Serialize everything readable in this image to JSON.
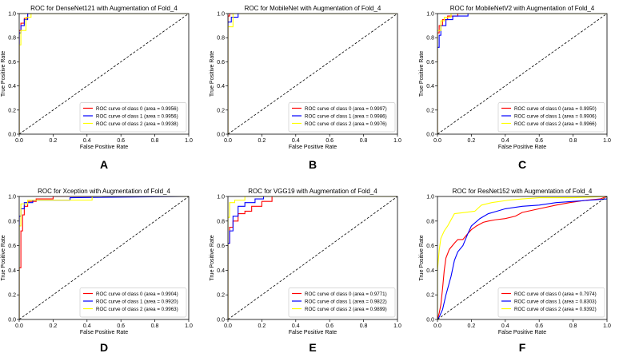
{
  "chart_data": [
    {
      "type": "line",
      "panel_label": "A",
      "title": "ROC for DenseNet121 with Augmentation of Fold_4",
      "xlabel": "False Positive Rate",
      "ylabel": "True Positive Rate",
      "xlim": [
        0,
        1
      ],
      "ylim": [
        0,
        1
      ],
      "ticks": [
        "0.0",
        "0.2",
        "0.4",
        "0.6",
        "0.8",
        "1.0"
      ],
      "legend_position": "bottom-right",
      "series": [
        {
          "name": "ROC curve of class 0 (area = 0.9956)",
          "color": "#ff0000",
          "x": [
            0,
            0,
            0.01,
            0.01,
            0.03,
            0.03,
            0.05,
            0.05,
            1
          ],
          "y": [
            0,
            0.86,
            0.86,
            0.92,
            0.92,
            0.96,
            0.96,
            1,
            1
          ]
        },
        {
          "name": "ROC curve of class 1 (area = 0.9956)",
          "color": "#0000ff",
          "x": [
            0,
            0,
            0.01,
            0.01,
            0.03,
            0.03,
            0.05,
            0.05,
            1
          ],
          "y": [
            0,
            0.84,
            0.84,
            0.9,
            0.9,
            0.95,
            0.95,
            1,
            1
          ]
        },
        {
          "name": "ROC curve of class 2 (area = 0.9938)",
          "color": "#ffff00",
          "x": [
            0,
            0,
            0.01,
            0.01,
            0.04,
            0.04,
            0.07,
            0.07,
            1
          ],
          "y": [
            0,
            0.74,
            0.74,
            0.86,
            0.86,
            0.97,
            0.97,
            1,
            1
          ]
        },
        {
          "name": "",
          "color": "#000000",
          "dashed": true,
          "x": [
            0,
            1
          ],
          "y": [
            0,
            1
          ]
        }
      ]
    },
    {
      "type": "line",
      "panel_label": "B",
      "title": "ROC for MobileNet with Augmentation of Fold_4",
      "xlabel": "False Positive Rate",
      "ylabel": "True Positive Rate",
      "xlim": [
        0,
        1
      ],
      "ylim": [
        0,
        1
      ],
      "ticks": [
        "0.0",
        "0.2",
        "0.4",
        "0.6",
        "0.8",
        "1.0"
      ],
      "legend_position": "bottom-right",
      "series": [
        {
          "name": "ROC curve of class 0 (area = 0.9997)",
          "color": "#ff0000",
          "x": [
            0,
            0,
            0.01,
            0.01,
            1
          ],
          "y": [
            0,
            0.98,
            0.98,
            1,
            1
          ]
        },
        {
          "name": "ROC curve of class 1 (area = 0.9986)",
          "color": "#0000ff",
          "x": [
            0,
            0,
            0.02,
            0.02,
            0.06,
            0.06,
            1
          ],
          "y": [
            0,
            0.93,
            0.93,
            0.97,
            0.97,
            1,
            1
          ]
        },
        {
          "name": "ROC curve of class 2 (area = 0.9976)",
          "color": "#ffff00",
          "x": [
            0,
            0,
            0.03,
            0.03,
            1
          ],
          "y": [
            0,
            0.89,
            0.89,
            1,
            1
          ]
        },
        {
          "name": "",
          "color": "#000000",
          "dashed": true,
          "x": [
            0,
            1
          ],
          "y": [
            0,
            1
          ]
        }
      ]
    },
    {
      "type": "line",
      "panel_label": "C",
      "title": "ROC for MobileNetV2 with Augmentation of Fold_4",
      "xlabel": "False Positive Rate",
      "ylabel": "True Positive Rate",
      "xlim": [
        0,
        1
      ],
      "ylim": [
        0,
        1
      ],
      "ticks": [
        "0.0",
        "0.2",
        "0.4",
        "0.6",
        "0.8",
        "1.0"
      ],
      "legend_position": "bottom-right",
      "series": [
        {
          "name": "ROC curve of class 0 (area = 0.9950)",
          "color": "#ff0000",
          "x": [
            0,
            0,
            0.01,
            0.01,
            0.03,
            0.03,
            0.06,
            0.06,
            0.12,
            0.12,
            1
          ],
          "y": [
            0,
            0.84,
            0.84,
            0.9,
            0.9,
            0.95,
            0.95,
            0.98,
            0.98,
            1,
            1
          ]
        },
        {
          "name": "ROC curve of class 1 (area = 0.9906)",
          "color": "#0000ff",
          "x": [
            0,
            0,
            0.01,
            0.01,
            0.02,
            0.02,
            0.05,
            0.05,
            0.09,
            0.09,
            0.18,
            0.18,
            1
          ],
          "y": [
            0,
            0.72,
            0.72,
            0.82,
            0.82,
            0.9,
            0.9,
            0.95,
            0.95,
            0.98,
            0.98,
            1,
            1
          ]
        },
        {
          "name": "ROC curve of class 2 (area = 0.9966)",
          "color": "#ffff00",
          "x": [
            0,
            0,
            0.02,
            0.02,
            0.04,
            0.04,
            0.08,
            0.08,
            1
          ],
          "y": [
            0,
            0.86,
            0.86,
            0.94,
            0.94,
            0.97,
            0.97,
            1,
            1
          ]
        },
        {
          "name": "",
          "color": "#000000",
          "dashed": true,
          "x": [
            0,
            1
          ],
          "y": [
            0,
            1
          ]
        }
      ]
    },
    {
      "type": "line",
      "panel_label": "D",
      "title": "ROC for Xception with Augmentation of Fold_4",
      "xlabel": "False Positive Rate",
      "ylabel": "True Positive Rate",
      "xlim": [
        0,
        1
      ],
      "ylim": [
        0,
        1
      ],
      "ticks": [
        "0.0",
        "0.2",
        "0.4",
        "0.6",
        "0.8",
        "1.0"
      ],
      "legend_position": "bottom-right",
      "series": [
        {
          "name": "ROC curve of class 0 (area = 0.9904)",
          "color": "#ff0000",
          "x": [
            0,
            0,
            0.01,
            0.01,
            0.02,
            0.02,
            0.03,
            0.03,
            0.05,
            0.05,
            0.1,
            0.1,
            0.2,
            0.2,
            1
          ],
          "y": [
            0,
            0.42,
            0.42,
            0.72,
            0.72,
            0.85,
            0.85,
            0.92,
            0.92,
            0.96,
            0.96,
            0.98,
            0.98,
            1,
            1
          ]
        },
        {
          "name": "ROC curve of class 1 (area = 0.9920)",
          "color": "#0000ff",
          "x": [
            0,
            0,
            0.01,
            0.01,
            0.03,
            0.03,
            0.08,
            0.08,
            0.3,
            0.3,
            1
          ],
          "y": [
            0,
            0.84,
            0.84,
            0.9,
            0.9,
            0.95,
            0.95,
            0.97,
            0.97,
            0.99,
            1
          ]
        },
        {
          "name": "ROC curve of class 2 (area = 0.9963)",
          "color": "#ffff00",
          "x": [
            0,
            0,
            0.01,
            0.01,
            0.05,
            0.05,
            0.43,
            0.43,
            1
          ],
          "y": [
            0,
            0.76,
            0.76,
            0.94,
            0.94,
            0.97,
            0.97,
            1,
            1
          ]
        },
        {
          "name": "",
          "color": "#000000",
          "dashed": true,
          "x": [
            0,
            1
          ],
          "y": [
            0,
            1
          ]
        }
      ]
    },
    {
      "type": "line",
      "panel_label": "E",
      "title": "ROC for VGG19 with Augmentation of Fold_4",
      "xlabel": "False Positive Rate",
      "ylabel": "True Positive Rate",
      "xlim": [
        0,
        1
      ],
      "ylim": [
        0,
        1
      ],
      "ticks": [
        "0.0",
        "0.2",
        "0.4",
        "0.6",
        "0.8",
        "1.0"
      ],
      "legend_position": "bottom-right",
      "series": [
        {
          "name": "ROC curve of class 0 (area = 0.9771)",
          "color": "#ff0000",
          "x": [
            0,
            0,
            0.01,
            0.01,
            0.03,
            0.03,
            0.06,
            0.06,
            0.1,
            0.1,
            0.14,
            0.14,
            0.2,
            0.2,
            0.26,
            0.26,
            1
          ],
          "y": [
            0,
            0.62,
            0.62,
            0.75,
            0.75,
            0.8,
            0.8,
            0.86,
            0.86,
            0.88,
            0.88,
            0.92,
            0.92,
            0.96,
            0.96,
            1,
            1
          ]
        },
        {
          "name": "ROC curve of class 1 (area = 0.9822)",
          "color": "#0000ff",
          "x": [
            0,
            0,
            0.01,
            0.01,
            0.03,
            0.03,
            0.06,
            0.06,
            0.1,
            0.1,
            0.16,
            0.16,
            0.21,
            0.21,
            1
          ],
          "y": [
            0,
            0.62,
            0.62,
            0.72,
            0.72,
            0.84,
            0.84,
            0.92,
            0.92,
            0.95,
            0.95,
            0.98,
            0.98,
            1,
            1
          ]
        },
        {
          "name": "ROC curve of class 2 (area = 0.9899)",
          "color": "#ffff00",
          "x": [
            0,
            0,
            0.01,
            0.01,
            0.04,
            0.04,
            0.1,
            0.1,
            1
          ],
          "y": [
            0,
            0.83,
            0.83,
            0.95,
            0.95,
            0.97,
            0.97,
            1,
            1
          ]
        },
        {
          "name": "",
          "color": "#000000",
          "dashed": true,
          "x": [
            0,
            1
          ],
          "y": [
            0,
            1
          ]
        }
      ]
    },
    {
      "type": "line",
      "panel_label": "F",
      "title": "ROC for ResNet152 with Augmentation of Fold_4",
      "xlabel": "False Positive Rate",
      "ylabel": "True Positive Rate",
      "xlim": [
        0,
        1
      ],
      "ylim": [
        0,
        1
      ],
      "ticks": [
        "0.0",
        "0.2",
        "0.4",
        "0.6",
        "0.8",
        "1.0"
      ],
      "legend_position": "bottom-right",
      "series": [
        {
          "name": "ROC curve of class 0 (area = 0.7974)",
          "color": "#ff0000",
          "x": [
            0,
            0.01,
            0.02,
            0.03,
            0.04,
            0.05,
            0.07,
            0.1,
            0.12,
            0.15,
            0.18,
            0.2,
            0.23,
            0.27,
            0.3,
            0.34,
            0.4,
            0.46,
            0.5,
            0.6,
            0.7,
            0.78,
            0.88,
            0.96,
            1
          ],
          "y": [
            0,
            0.05,
            0.12,
            0.25,
            0.4,
            0.5,
            0.57,
            0.62,
            0.65,
            0.65,
            0.7,
            0.73,
            0.76,
            0.79,
            0.8,
            0.81,
            0.82,
            0.84,
            0.87,
            0.9,
            0.93,
            0.95,
            0.97,
            0.98,
            1
          ]
        },
        {
          "name": "ROC curve of class 1 (area = 0.8303)",
          "color": "#0000ff",
          "x": [
            0,
            0.01,
            0.03,
            0.05,
            0.08,
            0.1,
            0.12,
            0.15,
            0.18,
            0.2,
            0.25,
            0.3,
            0.35,
            0.4,
            0.5,
            0.6,
            0.7,
            0.8,
            0.9,
            1
          ],
          "y": [
            0,
            0.02,
            0.08,
            0.2,
            0.35,
            0.48,
            0.55,
            0.6,
            0.7,
            0.76,
            0.82,
            0.86,
            0.88,
            0.9,
            0.92,
            0.93,
            0.95,
            0.96,
            0.97,
            0.98
          ]
        },
        {
          "name": "ROC curve of class 2 (area = 0.9392)",
          "color": "#ffff00",
          "x": [
            0,
            0,
            0.01,
            0.02,
            0.04,
            0.06,
            0.1,
            0.16,
            0.22,
            0.26,
            0.32,
            0.42,
            0.5,
            0.6,
            0.8,
            1
          ],
          "y": [
            0,
            0.4,
            0.56,
            0.66,
            0.72,
            0.76,
            0.86,
            0.87,
            0.88,
            0.93,
            0.95,
            0.97,
            0.98,
            0.99,
            0.99,
            1
          ]
        },
        {
          "name": "",
          "color": "#000000",
          "dashed": true,
          "x": [
            0,
            1
          ],
          "y": [
            0,
            1
          ]
        }
      ]
    }
  ]
}
